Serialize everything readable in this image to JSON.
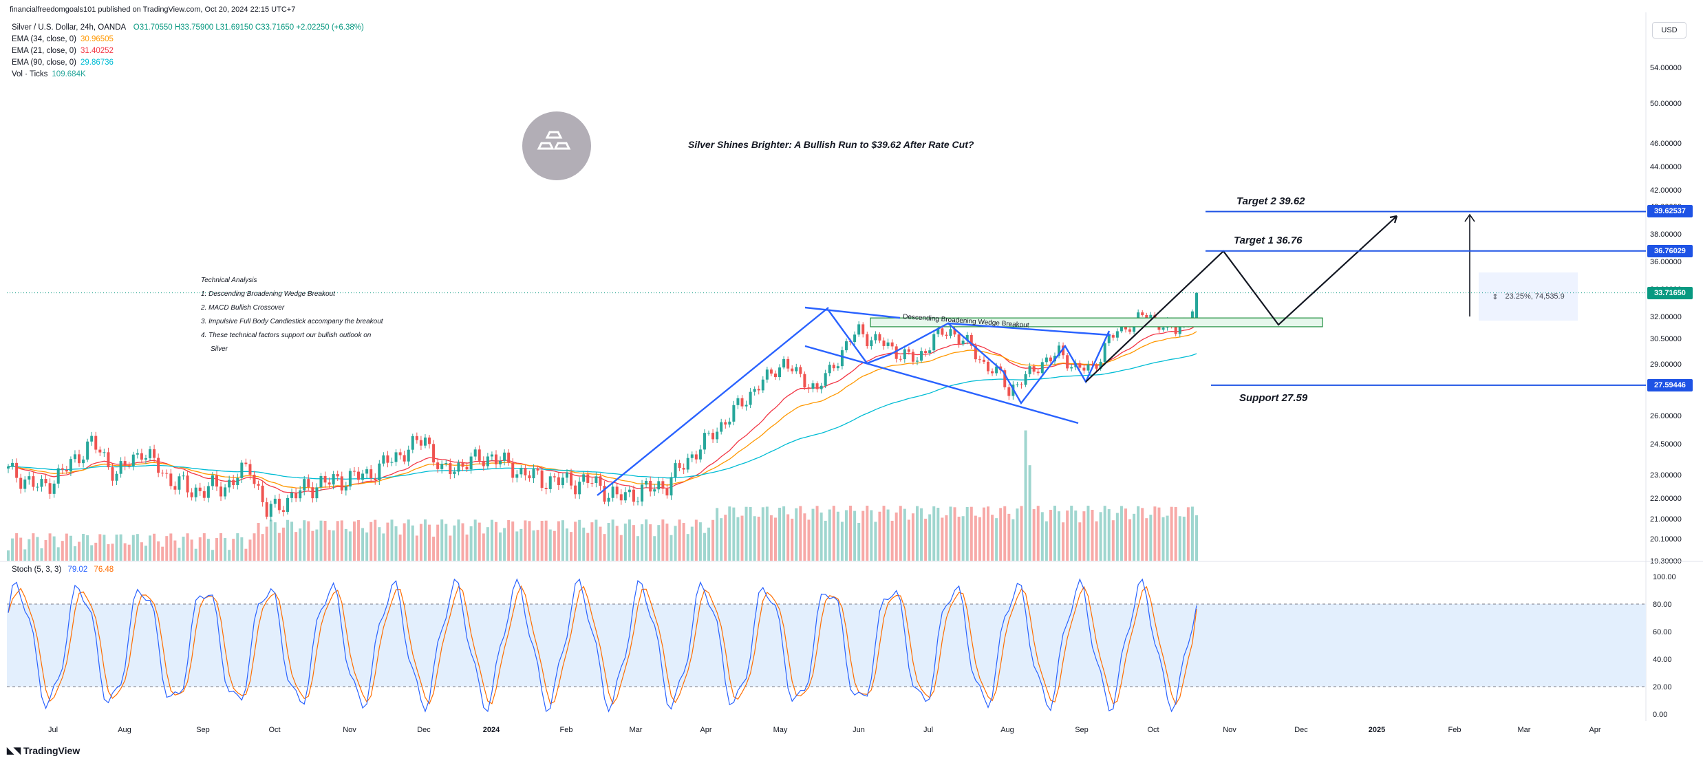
{
  "header": {
    "published": "financialfreedomgoals101 published on TradingView.com, Oct 20, 2024 22:15 UTC+7"
  },
  "legend": {
    "symbol": "Silver / U.S. Dollar, 24h, OANDA",
    "ohlc": "O31.70550  H33.75900  L31.69150  C33.71650  +2.02250 (+6.38%)",
    "ema34_label": "EMA (34, close, 0)",
    "ema34_value": "30.96505",
    "ema21_label": "EMA (21, close, 0)",
    "ema21_value": "31.40252",
    "ema90_label": "EMA (90, close, 0)",
    "ema90_value": "29.86736",
    "vol_label": "Vol · Ticks",
    "vol_value": "109.684K"
  },
  "currency": "USD",
  "title": "Silver Shines Brighter: A Bullish Run to $39.62 After Rate Cut?",
  "analysis": {
    "heading": "Technical Analysis",
    "items": [
      "1. Descending Broadening Wedge Breakout",
      "2.  MACD Bullish Crossover",
      "3. Impulsive Full Body Candlestick accompany the breakout",
      "4. These technical factors support our bullish outlook on",
      "Silver"
    ]
  },
  "annotations": {
    "wedge_label": "Descending Broadening Wedge Breakout",
    "target2": "Target 2  39.62",
    "target1": "Target 1  36.76",
    "support": "Support 27.59",
    "measure": "23.25%, 74,535.9"
  },
  "price_tags": {
    "target2": "39.62537",
    "target1": "36.76029",
    "current": "33.71650",
    "support": "27.59446"
  },
  "stoch": {
    "label": "Stoch (5, 3, 3)",
    "k_value": "79.02",
    "d_value": "76.48"
  },
  "branding": "TradingView",
  "colors": {
    "up": "#26a69a",
    "down": "#ef5350",
    "ema34": "#ff9800",
    "ema21": "#f23645",
    "ema90": "#00bcd4",
    "pattern": "#2962ff",
    "target": "#1e53e5",
    "stoch_k": "#2962ff",
    "stoch_d": "#ff6d00",
    "stoch_band": "#e3effd",
    "support_zone": "#e6f7ec",
    "support_zone_border": "#1e8e3e"
  },
  "chart_data": {
    "type": "candlestick",
    "instrument": "Silver / U.S. Dollar, 24h, OANDA",
    "x_ticks": [
      "Jul",
      "Aug",
      "Sep",
      "Oct",
      "Nov",
      "Dec",
      "2024",
      "Feb",
      "Mar",
      "Apr",
      "May",
      "Jun",
      "Jul",
      "Aug",
      "Sep",
      "Oct",
      "Nov",
      "Dec",
      "2025",
      "Feb",
      "Mar",
      "Apr"
    ],
    "y_ticks": [
      "19.30000",
      "20.10000",
      "21.00000",
      "22.00000",
      "23.00000",
      "24.50000",
      "26.00000",
      "27.50000",
      "29.00000",
      "30.50000",
      "32.00000",
      "34.00000",
      "36.00000",
      "38.00000",
      "40.00000",
      "42.00000",
      "44.00000",
      "46.00000",
      "50.00000",
      "54.00000"
    ],
    "y_tick_values": [
      19.3,
      20.1,
      21,
      22,
      23,
      24.5,
      26,
      27.5,
      29,
      30.5,
      32,
      34,
      36,
      38,
      40,
      42,
      44,
      46,
      50,
      54
    ],
    "ylim": [
      19.2,
      56
    ],
    "waypoints_close": [
      [
        0,
        23.2
      ],
      [
        8,
        22.4
      ],
      [
        14,
        23.3
      ],
      [
        20,
        24.6
      ],
      [
        26,
        23.0
      ],
      [
        32,
        24.2
      ],
      [
        38,
        22.9
      ],
      [
        44,
        22.3
      ],
      [
        52,
        22.5
      ],
      [
        58,
        23.4
      ],
      [
        62,
        21.3
      ],
      [
        66,
        21.8
      ],
      [
        72,
        22.5
      ],
      [
        80,
        22.8
      ],
      [
        86,
        23.0
      ],
      [
        94,
        24.0
      ],
      [
        100,
        24.8
      ],
      [
        104,
        23.1
      ],
      [
        110,
        23.6
      ],
      [
        116,
        23.9
      ],
      [
        122,
        23.2
      ],
      [
        128,
        22.8
      ],
      [
        134,
        22.7
      ],
      [
        140,
        22.7
      ],
      [
        146,
        22.0
      ],
      [
        152,
        22.3
      ],
      [
        158,
        22.6
      ],
      [
        162,
        23.5
      ],
      [
        168,
        24.8
      ],
      [
        174,
        26.2
      ],
      [
        180,
        27.6
      ],
      [
        186,
        29.1
      ],
      [
        190,
        28.1
      ],
      [
        194,
        27.3
      ],
      [
        198,
        29.0
      ],
      [
        204,
        31.1
      ],
      [
        206,
        30.6
      ],
      [
        210,
        30.2
      ],
      [
        214,
        29.6
      ],
      [
        218,
        29.2
      ],
      [
        222,
        30.6
      ],
      [
        226,
        31.0
      ],
      [
        230,
        30.2
      ],
      [
        234,
        29.0
      ],
      [
        238,
        28.2
      ],
      [
        240,
        27.3
      ],
      [
        244,
        28.1
      ],
      [
        248,
        29.1
      ],
      [
        252,
        29.6
      ],
      [
        256,
        28.8
      ],
      [
        260,
        28.6
      ],
      [
        264,
        30.5
      ],
      [
        268,
        31.3
      ],
      [
        272,
        32.1
      ],
      [
        276,
        31.6
      ],
      [
        280,
        31.0
      ],
      [
        283,
        31.8
      ],
      [
        285,
        33.7
      ]
    ],
    "ema34_last": 30.96505,
    "ema21_last": 31.40252,
    "ema90_last": 29.86736,
    "last": {
      "open": 31.7055,
      "high": 33.759,
      "low": 31.6915,
      "close": 33.7165,
      "change": 2.0225,
      "change_pct": 6.38
    },
    "targets": [
      {
        "name": "Target 1",
        "value": 36.76029
      },
      {
        "name": "Target 2",
        "value": 39.62537
      }
    ],
    "support": 27.59446,
    "support_zone": [
      31.3,
      31.9
    ],
    "stochastic": {
      "params": "5, 3, 3",
      "k_last": 79.02,
      "d_last": 76.48,
      "ylim": [
        0,
        100
      ],
      "y_ticks": [
        "0.00",
        "20.00",
        "40.00",
        "60.00",
        "80.00",
        "100.00"
      ],
      "y_tick_values": [
        0,
        20,
        40,
        60,
        80,
        100
      ],
      "bands": [
        20,
        80
      ]
    }
  }
}
